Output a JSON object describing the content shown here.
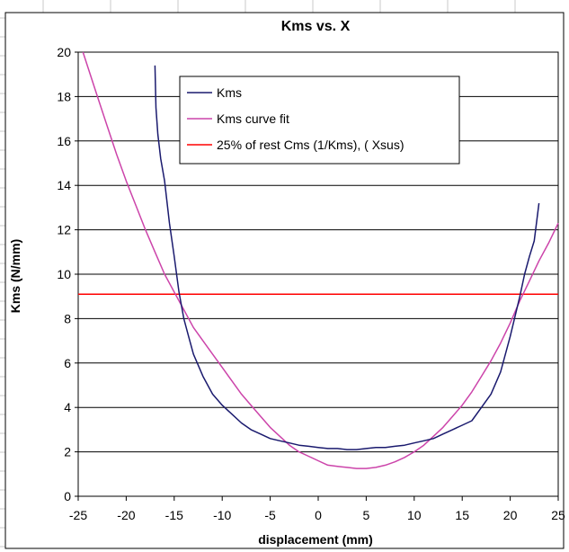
{
  "chart_data": {
    "type": "line",
    "title": "Kms vs. X",
    "xlabel": "displacement (mm)",
    "ylabel": "Kms (N/mm)",
    "xlim": [
      -25,
      25
    ],
    "ylim": [
      0,
      20
    ],
    "xticks": [
      -25,
      -20,
      -15,
      -10,
      -5,
      0,
      5,
      10,
      15,
      20,
      25
    ],
    "yticks": [
      0,
      2,
      4,
      6,
      8,
      10,
      12,
      14,
      16,
      18,
      20
    ],
    "grid": "horizontal",
    "legend_position": "top-center",
    "series": [
      {
        "name": "Kms",
        "color": "#1a1a6e",
        "x": [
          -17.0,
          -16.9,
          -16.7,
          -16.4,
          -16.0,
          -15.5,
          -15.0,
          -14.5,
          -14.0,
          -13.5,
          -13.0,
          -12.0,
          -11.0,
          -10.0,
          -9.0,
          -8.0,
          -7.0,
          -6.0,
          -5.0,
          -4.0,
          -3.0,
          -2.0,
          -1.0,
          0.0,
          1.0,
          2.0,
          3.0,
          4.0,
          5.0,
          6.0,
          7.0,
          8.0,
          9.0,
          10.0,
          11.0,
          12.0,
          13.0,
          14.0,
          15.0,
          16.0,
          17.0,
          18.0,
          19.0,
          20.0,
          21.0,
          21.5,
          22.0,
          22.5,
          23.0
        ],
        "y": [
          19.4,
          17.5,
          16.3,
          15.2,
          14.2,
          12.3,
          10.8,
          9.2,
          8.0,
          7.2,
          6.4,
          5.4,
          4.6,
          4.1,
          3.7,
          3.3,
          3.0,
          2.8,
          2.6,
          2.5,
          2.4,
          2.3,
          2.25,
          2.2,
          2.15,
          2.15,
          2.1,
          2.1,
          2.15,
          2.2,
          2.2,
          2.25,
          2.3,
          2.4,
          2.5,
          2.6,
          2.8,
          3.0,
          3.2,
          3.4,
          4.0,
          4.6,
          5.6,
          7.2,
          9.0,
          10.0,
          10.8,
          11.5,
          13.2
        ]
      },
      {
        "name": "Kms curve fit",
        "color": "#cc44aa",
        "x": [
          -24.5,
          -23,
          -22,
          -21,
          -20,
          -19,
          -18,
          -17,
          -16,
          -15,
          -14,
          -13,
          -12,
          -11,
          -10,
          -9,
          -8,
          -7,
          -6,
          -5,
          -4,
          -3,
          -2,
          -1,
          0,
          1,
          2,
          3,
          4,
          5,
          6,
          7,
          8,
          9,
          10,
          11,
          12,
          13,
          14,
          15,
          16,
          17,
          18,
          19,
          20,
          21,
          22,
          23,
          24,
          25
        ],
        "y": [
          20.0,
          18.0,
          16.7,
          15.4,
          14.2,
          13.1,
          12.0,
          11.0,
          10.0,
          9.2,
          8.4,
          7.6,
          7.0,
          6.4,
          5.8,
          5.2,
          4.6,
          4.1,
          3.6,
          3.1,
          2.7,
          2.3,
          2.0,
          1.8,
          1.6,
          1.4,
          1.35,
          1.3,
          1.25,
          1.25,
          1.3,
          1.4,
          1.55,
          1.75,
          2.0,
          2.3,
          2.7,
          3.1,
          3.6,
          4.1,
          4.7,
          5.4,
          6.1,
          6.9,
          7.8,
          8.8,
          9.7,
          10.6,
          11.4,
          12.3
        ]
      },
      {
        "name": "25% of rest Cms (1/Kms), ( Xsus)",
        "color": "#ff0000",
        "x": [
          -25,
          25
        ],
        "y": [
          9.1,
          9.1
        ]
      }
    ]
  }
}
